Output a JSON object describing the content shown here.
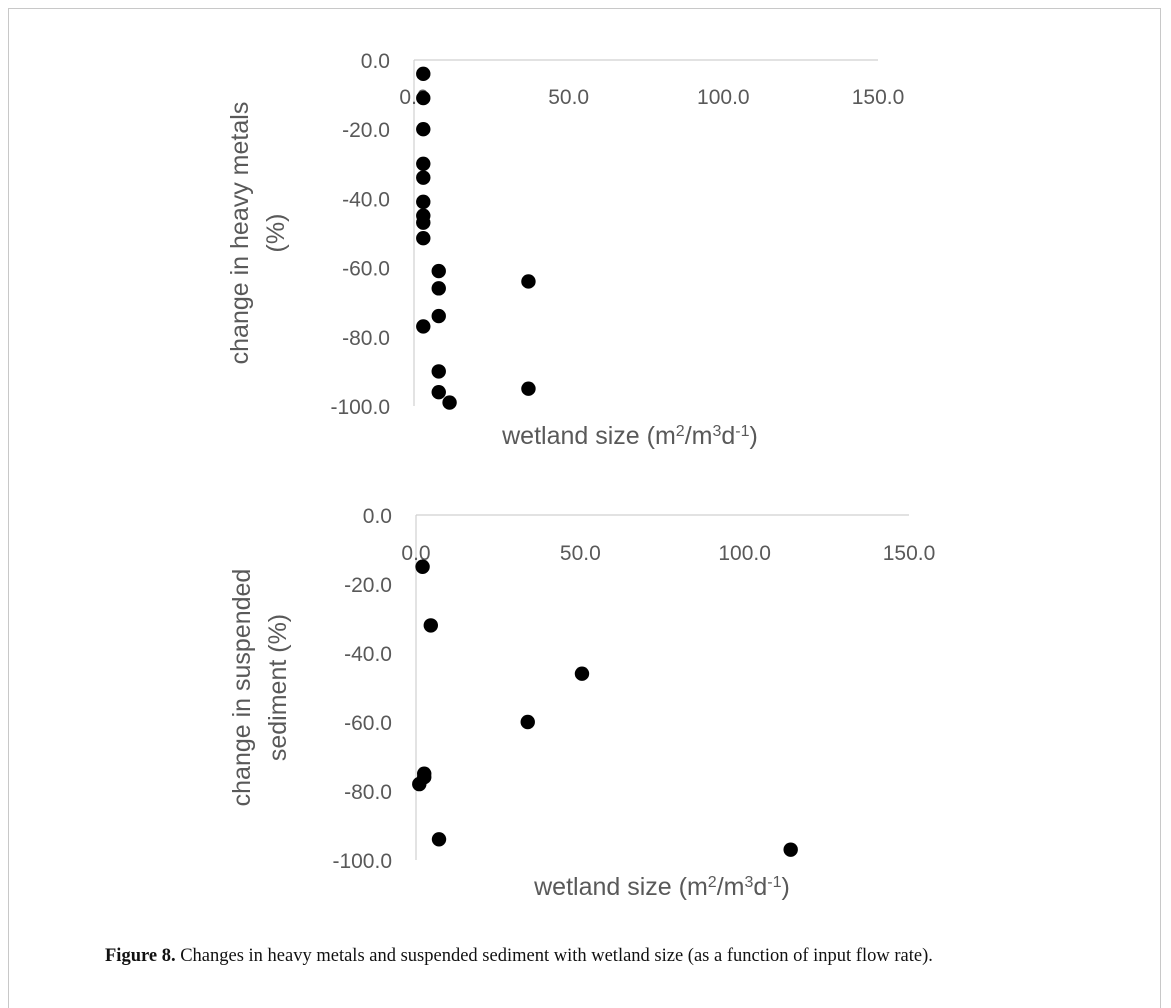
{
  "chart_data": [
    {
      "type": "scatter",
      "xlabel": "wetland size (m2/m3d-1)",
      "ylabel": "change in heavy metals (%)",
      "xlim": [
        0,
        150
      ],
      "ylim": [
        -100,
        0
      ],
      "x_ticks": [
        "0.0",
        "50.0",
        "100.0",
        "150.0"
      ],
      "y_ticks": [
        "0.0",
        "-20.0",
        "-40.0",
        "-60.0",
        "-80.0",
        "-100.0"
      ],
      "series": [
        {
          "points": [
            [
              3.0,
              -4
            ],
            [
              3.0,
              -11
            ],
            [
              3.0,
              -20
            ],
            [
              3.0,
              -30
            ],
            [
              3.0,
              -34
            ],
            [
              3.0,
              -41
            ],
            [
              3.0,
              -45
            ],
            [
              3.0,
              -47
            ],
            [
              3.0,
              -51.5
            ],
            [
              8.0,
              -61
            ],
            [
              8.0,
              -66
            ],
            [
              8.0,
              -74
            ],
            [
              3.0,
              -77
            ],
            [
              8.0,
              -90
            ],
            [
              8.0,
              -96
            ],
            [
              11.5,
              -99
            ],
            [
              37.0,
              -64
            ],
            [
              37.0,
              -95
            ]
          ]
        }
      ],
      "grid": false,
      "marker_color": "#000000"
    },
    {
      "type": "scatter",
      "xlabel": "wetland size (m2/m3d-1)",
      "ylabel": "change in suspended sediment (%)",
      "xlim": [
        0,
        150
      ],
      "ylim": [
        -100,
        0
      ],
      "x_ticks": [
        "0.0",
        "50.0",
        "100.0",
        "150.0"
      ],
      "y_ticks": [
        "0.0",
        "-20.0",
        "-40.0",
        "-60.0",
        "-80.0",
        "-100.0"
      ],
      "series": [
        {
          "points": [
            [
              2.0,
              -15
            ],
            [
              4.5,
              -32
            ],
            [
              50.5,
              -46
            ],
            [
              34.0,
              -60
            ],
            [
              2.5,
              -75
            ],
            [
              2.5,
              -76
            ],
            [
              1.0,
              -78
            ],
            [
              7.0,
              -94
            ],
            [
              114.0,
              -97
            ]
          ]
        }
      ],
      "grid": false,
      "marker_color": "#000000"
    }
  ],
  "figure": {
    "label": "Figure 8.",
    "caption": " Changes in heavy metals and suspended sediment with wetland size (as a function of input flow rate)."
  }
}
